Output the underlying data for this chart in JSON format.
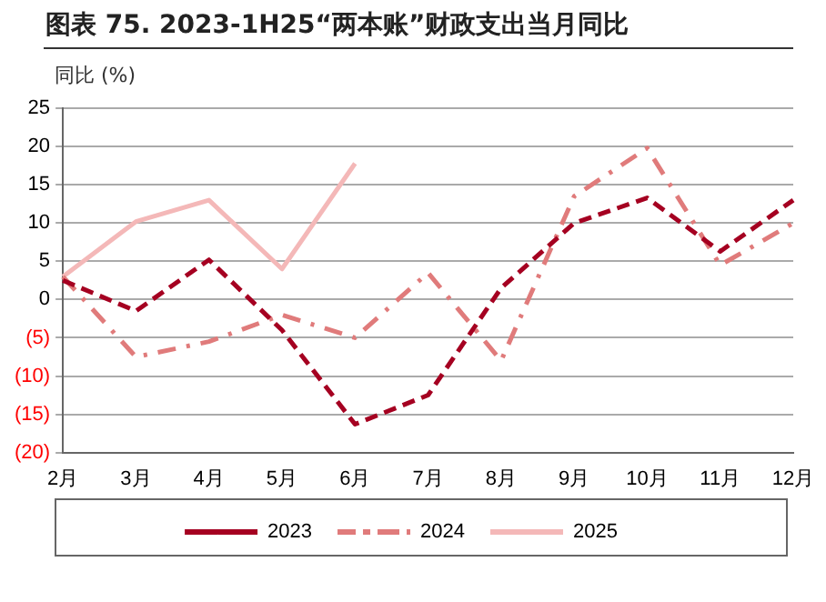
{
  "chart_data": {
    "type": "line",
    "title": "图表 75. 2023-1H25“两本账”财政支出当月同比",
    "ylabel": "同比 (%)",
    "categories": [
      "2月",
      "3月",
      "4月",
      "5月",
      "6月",
      "7月",
      "8月",
      "9月",
      "10月",
      "11月",
      "12月"
    ],
    "series": [
      {
        "name": "2023",
        "color": "#a50021",
        "line_style": "dashed",
        "values": [
          2.5,
          -1.5,
          5.2,
          -4,
          -16.3,
          -12.5,
          1.5,
          10,
          13.3,
          6.3,
          13
        ]
      },
      {
        "name": "2024",
        "color": "#e07b7b",
        "line_style": "dashdot",
        "values": [
          3,
          -7.5,
          -5.5,
          -2,
          -5,
          3.5,
          -8,
          13.5,
          19.8,
          4.5,
          10
        ]
      },
      {
        "name": "2025",
        "color": "#f4b8b8",
        "line_style": "solid",
        "values": [
          3,
          10.2,
          13,
          4,
          17.8,
          null,
          null,
          null,
          null,
          null,
          null
        ]
      }
    ],
    "ylim": [
      -20,
      25
    ],
    "yticks": [
      {
        "value": -20,
        "label": "(20)"
      },
      {
        "value": -15,
        "label": "(15)"
      },
      {
        "value": -10,
        "label": "(10)"
      },
      {
        "value": -5,
        "label": "(5)"
      },
      0,
      5,
      10,
      15,
      20,
      25
    ],
    "grid": "y",
    "legend": "bottom",
    "marker": "none"
  }
}
